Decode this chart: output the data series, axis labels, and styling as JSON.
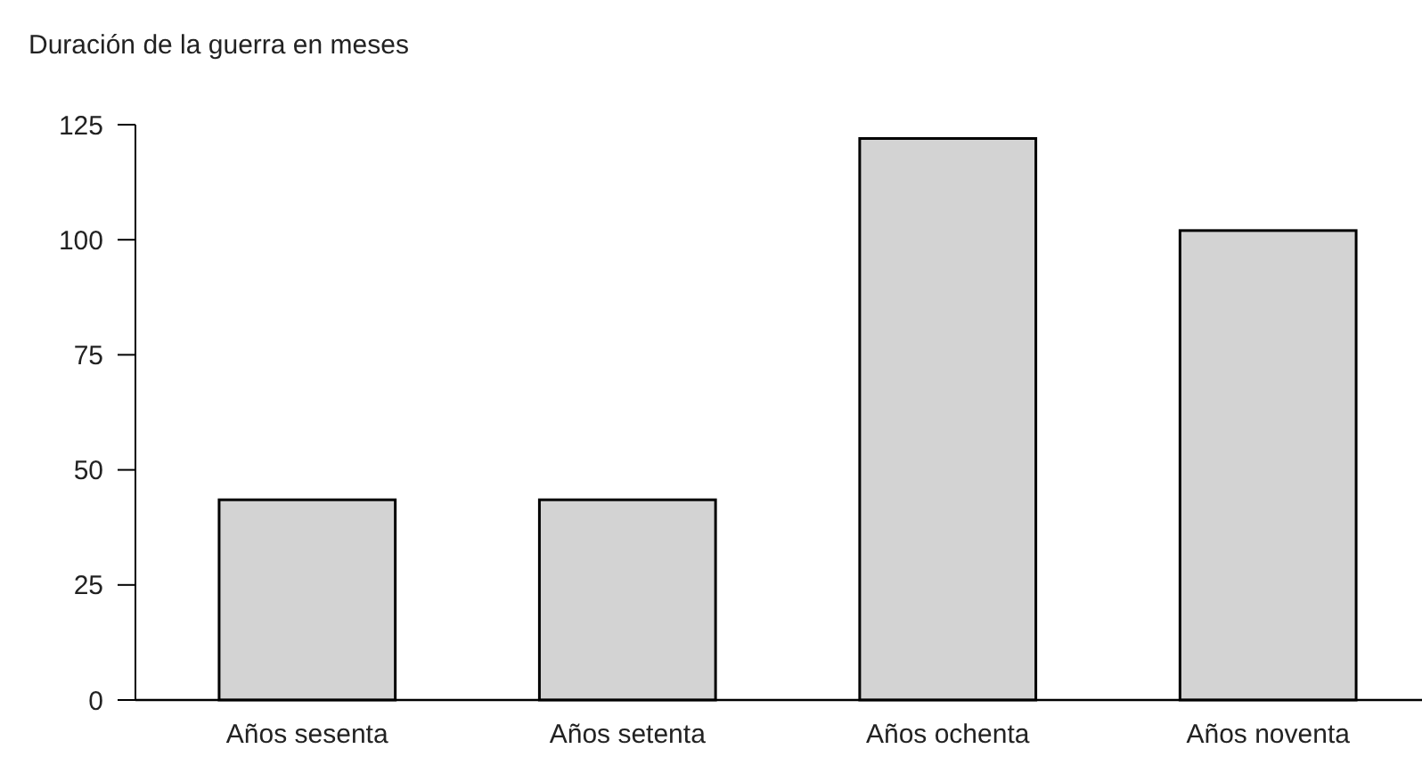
{
  "chart_data": {
    "type": "bar",
    "title": "Duración de la guerra en meses",
    "categories": [
      "Años sesenta",
      "Años setenta",
      "Años ochenta",
      "Años noventa"
    ],
    "values": [
      43.5,
      43.5,
      122,
      102
    ],
    "color": "#d3d3d3",
    "ylim": [
      0,
      125
    ],
    "yticks": [
      0,
      25,
      50,
      75,
      100,
      125
    ],
    "grid": false
  }
}
